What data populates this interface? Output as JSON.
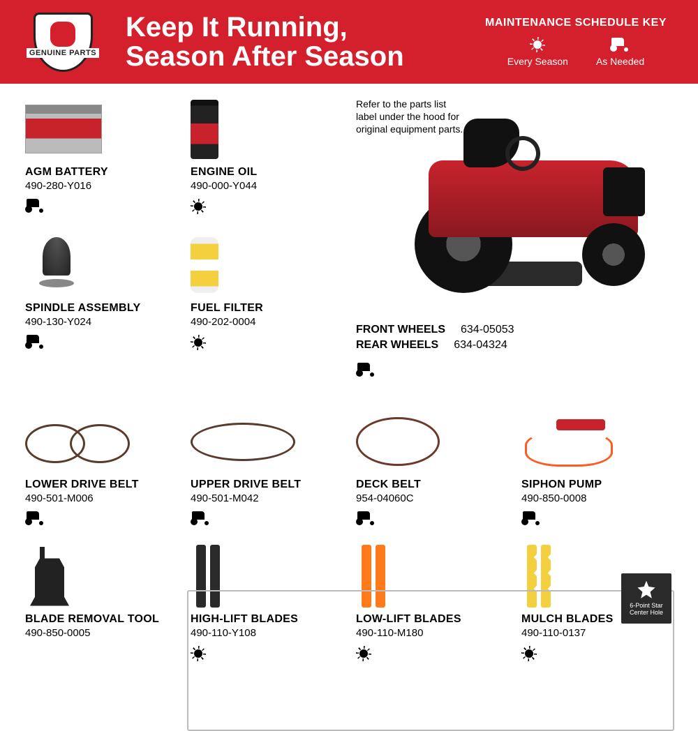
{
  "header": {
    "badge_text": "GENUINE PARTS",
    "title_line1": "Keep It Running,",
    "title_line2": "Season After Season",
    "key_title": "MAINTENANCE SCHEDULE KEY",
    "key_every": "Every Season",
    "key_asneeded": "As Needed"
  },
  "note": "Refer to the parts list label under the hood for original equipment parts.",
  "wheels": {
    "front_label": "FRONT WHEELS",
    "front_num": "634-05053",
    "rear_label": "REAR WHEELS",
    "rear_num": "634-04324"
  },
  "star_badge": "6-Point Star Center Hole",
  "parts": {
    "battery": {
      "name": "AGM BATTERY",
      "num": "490-280-Y016",
      "maint": "asneeded"
    },
    "oil": {
      "name": "ENGINE OIL",
      "num": "490-000-Y044",
      "maint": "season"
    },
    "spindle": {
      "name": "SPINDLE ASSEMBLY",
      "num": "490-130-Y024",
      "maint": "asneeded"
    },
    "filter": {
      "name": "FUEL FILTER",
      "num": "490-202-0004",
      "maint": "season"
    },
    "lbelt": {
      "name": "LOWER DRIVE BELT",
      "num": "490-501-M006",
      "maint": "asneeded"
    },
    "ubelt": {
      "name": "UPPER DRIVE BELT",
      "num": "490-501-M042",
      "maint": "asneeded"
    },
    "dbelt": {
      "name": "DECK BELT",
      "num": "954-04060C",
      "maint": "asneeded"
    },
    "siphon": {
      "name": "SIPHON PUMP",
      "num": "490-850-0008",
      "maint": "asneeded"
    },
    "tool": {
      "name": "BLADE REMOVAL TOOL",
      "num": "490-850-0005"
    },
    "hblades": {
      "name": "HIGH-LIFT BLADES",
      "num": "490-110-Y108",
      "maint": "season"
    },
    "lblades": {
      "name": "LOW-LIFT BLADES",
      "num": "490-110-M180",
      "maint": "season"
    },
    "mblades": {
      "name": "MULCH BLADES",
      "num": "490-110-0137",
      "maint": "season"
    }
  },
  "colors": {
    "brand_red": "#d4202c",
    "text": "#000000",
    "box_border": "#bbbbbb",
    "badge_dark": "#2a2a2a"
  }
}
